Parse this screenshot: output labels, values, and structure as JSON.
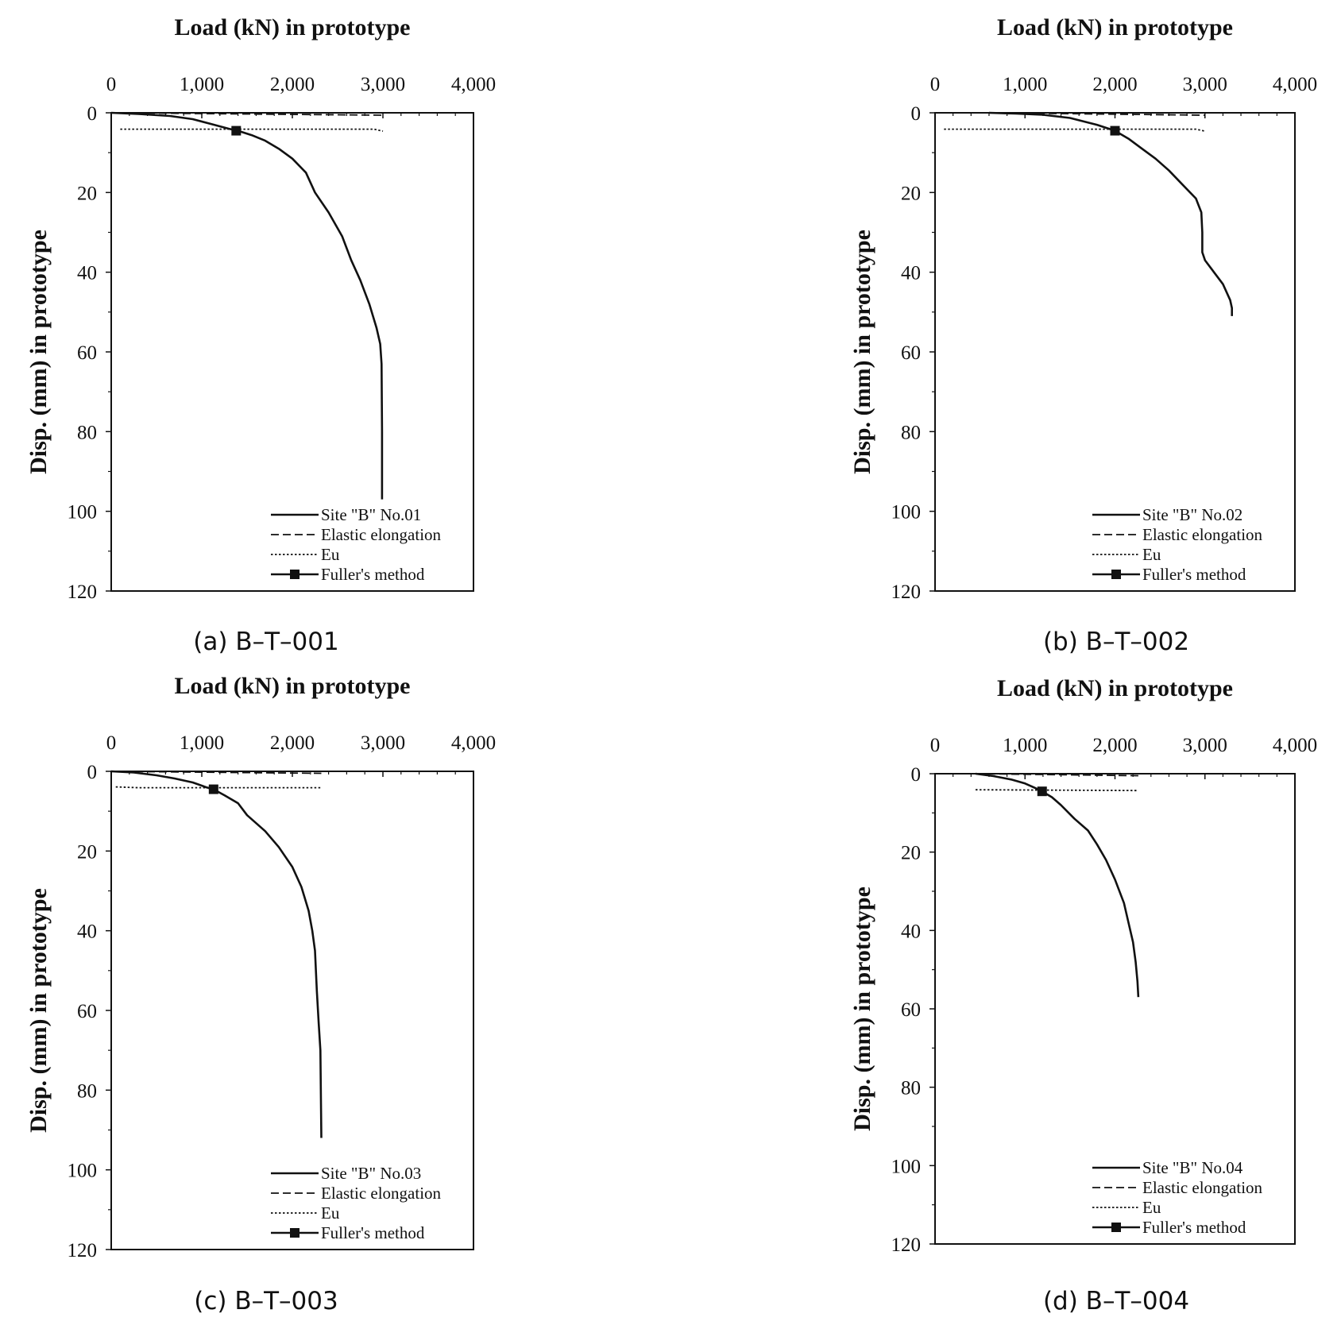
{
  "chart_data": [
    {
      "type": "line",
      "caption": "(a) B–T–001",
      "title": "Load (kN) in prototype",
      "xlabel": "Load (kN) in prototype",
      "ylabel": "Disp. (mm) in prototype",
      "xlim": [
        0,
        4000
      ],
      "ylim": [
        0,
        120
      ],
      "xticks": [
        0,
        1000,
        2000,
        3000,
        4000
      ],
      "xtick_labels": [
        "0",
        "1,000",
        "2,000",
        "3,000",
        "4,000"
      ],
      "yticks": [
        0,
        20,
        40,
        60,
        80,
        100,
        120
      ],
      "ytick_labels": [
        "0",
        "20",
        "40",
        "60",
        "80",
        "100",
        "120"
      ],
      "legend_position": "bottom-right",
      "series": [
        {
          "name": "Site \"B\" No.01",
          "style": "solid",
          "x": [
            0,
            300,
            650,
            900,
            1100,
            1300,
            1400,
            1550,
            1700,
            1850,
            2000,
            2150,
            2250,
            2400,
            2550,
            2650,
            2750,
            2850,
            2930,
            2970,
            2985,
            2990,
            2990
          ],
          "y": [
            0,
            0.3,
            0.8,
            1.6,
            2.8,
            4.0,
            4.5,
            5.6,
            7.0,
            9.0,
            11.5,
            15.0,
            20.0,
            25.0,
            31.0,
            37.0,
            42.0,
            48.0,
            54.0,
            58.0,
            63.0,
            80.0,
            97.0
          ]
        },
        {
          "name": "Elastic elongation",
          "style": "dashed",
          "x": [
            0,
            3000
          ],
          "y": [
            0,
            0.6
          ]
        },
        {
          "name": "Eu",
          "style": "dotted",
          "x": [
            100,
            2900,
            3000
          ],
          "y": [
            4.1,
            4.1,
            4.6
          ]
        },
        {
          "name": "Fuller's method",
          "style": "marker",
          "x": [
            1380
          ],
          "y": [
            4.5
          ]
        }
      ]
    },
    {
      "type": "line",
      "caption": "(b) B–T–002",
      "title": "Load (kN) in prototype",
      "xlabel": "Load (kN) in prototype",
      "ylabel": "Disp. (mm) in prototype",
      "xlim": [
        0,
        4000
      ],
      "ylim": [
        0,
        120
      ],
      "xticks": [
        0,
        1000,
        2000,
        3000,
        4000
      ],
      "xtick_labels": [
        "0",
        "1,000",
        "2,000",
        "3,000",
        "4,000"
      ],
      "yticks": [
        0,
        20,
        40,
        60,
        80,
        100,
        120
      ],
      "ytick_labels": [
        "0",
        "20",
        "40",
        "60",
        "80",
        "100",
        "120"
      ],
      "legend_position": "bottom-right",
      "series": [
        {
          "name": "Site \"B\" No.02",
          "style": "solid",
          "x": [
            600,
            900,
            1200,
            1500,
            1800,
            2000,
            2150,
            2300,
            2450,
            2600,
            2750,
            2900,
            2960,
            2970,
            2970,
            3000,
            3100,
            3200,
            3280,
            3300,
            3300
          ],
          "y": [
            0,
            0.2,
            0.5,
            1.3,
            3.0,
            4.5,
            6.5,
            9.0,
            11.5,
            14.5,
            18.0,
            21.5,
            25.0,
            30.0,
            35.0,
            37.0,
            40.0,
            43.0,
            47.0,
            49.0,
            51.0
          ]
        },
        {
          "name": "Elastic elongation",
          "style": "dashed",
          "x": [
            600,
            3000
          ],
          "y": [
            0,
            0.6
          ]
        },
        {
          "name": "Eu",
          "style": "dotted",
          "x": [
            100,
            2900,
            3000
          ],
          "y": [
            4.1,
            4.1,
            4.6
          ]
        },
        {
          "name": "Fuller's method",
          "style": "marker",
          "x": [
            2000
          ],
          "y": [
            4.5
          ]
        }
      ]
    },
    {
      "type": "line",
      "caption": "(c) B–T–003",
      "title": "Load (kN) in prototype",
      "xlabel": "Load (kN) in prototype",
      "ylabel": "Disp. (mm) in prototype",
      "xlim": [
        0,
        4000
      ],
      "ylim": [
        0,
        120
      ],
      "xticks": [
        0,
        1000,
        2000,
        3000,
        4000
      ],
      "xtick_labels": [
        "0",
        "1,000",
        "2,000",
        "3,000",
        "4,000"
      ],
      "yticks": [
        0,
        20,
        40,
        60,
        80,
        100,
        120
      ],
      "ytick_labels": [
        "0",
        "20",
        "40",
        "60",
        "80",
        "100",
        "120"
      ],
      "legend_position": "bottom-right",
      "series": [
        {
          "name": "Site \"B\" No.03",
          "style": "solid",
          "x": [
            0,
            250,
            500,
            700,
            900,
            1050,
            1130,
            1250,
            1400,
            1500,
            1700,
            1850,
            2000,
            2100,
            2180,
            2220,
            2250,
            2270,
            2290,
            2310,
            2320
          ],
          "y": [
            0,
            0.3,
            1.0,
            1.8,
            2.8,
            4.0,
            4.5,
            6.0,
            8.0,
            11.0,
            15.0,
            19.0,
            24.0,
            29.0,
            35.0,
            40.0,
            45.0,
            55.0,
            63.0,
            70.0,
            92.0
          ]
        },
        {
          "name": "Elastic elongation",
          "style": "dashed",
          "x": [
            0,
            2320
          ],
          "y": [
            0,
            0.5
          ]
        },
        {
          "name": "Eu",
          "style": "dotted",
          "x": [
            50,
            300,
            2320
          ],
          "y": [
            3.9,
            4.1,
            4.1
          ]
        },
        {
          "name": "Fuller's method",
          "style": "marker",
          "x": [
            1130
          ],
          "y": [
            4.5
          ]
        }
      ]
    },
    {
      "type": "line",
      "caption": "(d) B–T–004",
      "title": "Load (kN) in prototype",
      "xlabel": "Load (kN) in prototype",
      "ylabel": "Disp. (mm) in prototype",
      "xlim": [
        0,
        4000
      ],
      "ylim": [
        0,
        120
      ],
      "xticks": [
        0,
        1000,
        2000,
        3000,
        4000
      ],
      "xtick_labels": [
        "0",
        "1,000",
        "2,000",
        "3,000",
        "4,000"
      ],
      "yticks": [
        0,
        20,
        40,
        60,
        80,
        100,
        120
      ],
      "ytick_labels": [
        "0",
        "20",
        "40",
        "60",
        "80",
        "100",
        "120"
      ],
      "legend_position": "bottom-right",
      "series": [
        {
          "name": "Site \"B\" No.04",
          "style": "solid",
          "x": [
            450,
            650,
            850,
            1000,
            1100,
            1190,
            1300,
            1400,
            1550,
            1700,
            1800,
            1900,
            2000,
            2100,
            2150,
            2200,
            2230,
            2250,
            2260
          ],
          "y": [
            0,
            0.6,
            1.5,
            2.5,
            3.5,
            4.5,
            6.0,
            8.0,
            11.5,
            14.5,
            18.0,
            22.0,
            27.0,
            33.0,
            38.0,
            43.0,
            48.0,
            53.0,
            57.0
          ]
        },
        {
          "name": "Elastic elongation",
          "style": "dashed",
          "x": [
            450,
            2260
          ],
          "y": [
            0,
            0.5
          ]
        },
        {
          "name": "Eu",
          "style": "dotted",
          "x": [
            450,
            2260
          ],
          "y": [
            4.1,
            4.3
          ]
        },
        {
          "name": "Fuller's method",
          "style": "marker",
          "x": [
            1190
          ],
          "y": [
            4.5
          ]
        }
      ]
    }
  ]
}
